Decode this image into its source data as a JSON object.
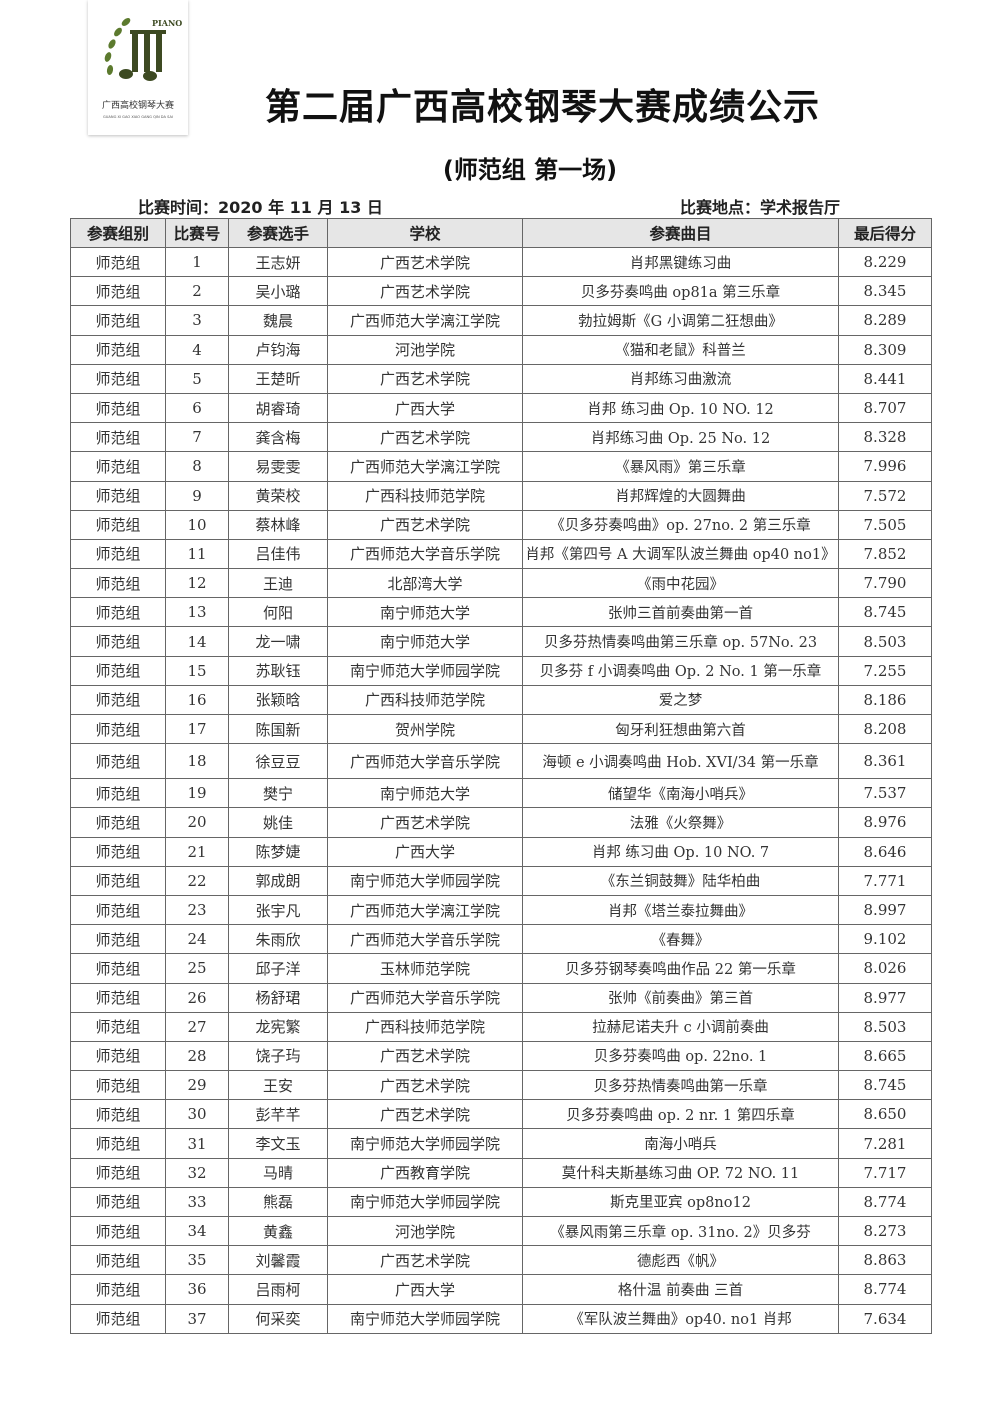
{
  "logo": {
    "top_text": "PIANO",
    "cn_text": "广西高校钢琴大赛",
    "pinyin": "GUANG XI GAO XIAO GANG QIN DA SAI",
    "color": "#4a5a2a"
  },
  "title": "第二届广西高校钢琴大赛成绩公示",
  "subtitle": "(师范组  第一场)",
  "time_label": "比赛时间：2020 年 11 月 13 日",
  "venue_label": "比赛地点：学术报告厅",
  "table": {
    "headers": [
      "参赛组别",
      "比赛号",
      "参赛选手",
      "学校",
      "参赛曲目",
      "最后得分"
    ],
    "rows": [
      [
        "师范组",
        "1",
        "王志妍",
        "广西艺术学院",
        "肖邦黑键练习曲",
        "8.229"
      ],
      [
        "师范组",
        "2",
        "吴小璐",
        "广西艺术学院",
        "贝多芬奏鸣曲 op81a 第三乐章",
        "8.345"
      ],
      [
        "师范组",
        "3",
        "魏晨",
        "广西师范大学漓江学院",
        "勃拉姆斯《G 小调第二狂想曲》",
        "8.289"
      ],
      [
        "师范组",
        "4",
        "卢钧海",
        "河池学院",
        "《猫和老鼠》科普兰",
        "8.309"
      ],
      [
        "师范组",
        "5",
        "王楚昕",
        "广西艺术学院",
        "肖邦练习曲激流",
        "8.441"
      ],
      [
        "师范组",
        "6",
        "胡睿琦",
        "广西大学",
        "肖邦  练习曲  Op. 10  NO. 12",
        "8.707"
      ],
      [
        "师范组",
        "7",
        "龚含梅",
        "广西艺术学院",
        "肖邦练习曲 Op. 25  No. 12",
        "8.328"
      ],
      [
        "师范组",
        "8",
        "易雯雯",
        "广西师范大学漓江学院",
        "《暴风雨》第三乐章",
        "7.996"
      ],
      [
        "师范组",
        "9",
        "黄荣校",
        "广西科技师范学院",
        "肖邦辉煌的大圆舞曲",
        "7.572"
      ],
      [
        "师范组",
        "10",
        "蔡林峰",
        "广西艺术学院",
        "《贝多芬奏鸣曲》op. 27no. 2 第三乐章",
        "7.505"
      ],
      [
        "师范组",
        "11",
        "吕佳伟",
        "广西师范大学音乐学院",
        "肖邦《第四号 A 大调军队波兰舞曲 op40 no1》",
        "7.852"
      ],
      [
        "师范组",
        "12",
        "王迪",
        "北部湾大学",
        "《雨中花园》",
        "7.790"
      ],
      [
        "师范组",
        "13",
        "何阳",
        "南宁师范大学",
        "张帅三首前奏曲第一首",
        "8.745"
      ],
      [
        "师范组",
        "14",
        "龙一啸",
        "南宁师范大学",
        "贝多芬热情奏鸣曲第三乐章 op. 57No. 23",
        "8.503"
      ],
      [
        "师范组",
        "15",
        "苏耿钰",
        "南宁师范大学师园学院",
        "贝多芬 f 小调奏鸣曲 Op. 2  No. 1 第一乐章",
        "7.255"
      ],
      [
        "师范组",
        "16",
        "张颖晗",
        "广西科技师范学院",
        "爱之梦",
        "8.186"
      ],
      [
        "师范组",
        "17",
        "陈国新",
        "贺州学院",
        "匈牙利狂想曲第六首",
        "8.208"
      ],
      [
        "师范组",
        "18",
        "徐豆豆",
        "广西师范大学音乐学院",
        "海顿 e 小调奏鸣曲 Hob. XVI/34 第一乐章",
        "8.361"
      ],
      [
        "师范组",
        "19",
        "樊宁",
        "南宁师范大学",
        "储望华《南海小哨兵》",
        "7.537"
      ],
      [
        "师范组",
        "20",
        "姚佳",
        "广西艺术学院",
        "法雅《火祭舞》",
        "8.976"
      ],
      [
        "师范组",
        "21",
        "陈梦婕",
        "广西大学",
        "肖邦  练习曲  Op. 10  NO. 7",
        "8.646"
      ],
      [
        "师范组",
        "22",
        "郭成朗",
        "南宁师范大学师园学院",
        "《东兰铜鼓舞》陆华柏曲",
        "7.771"
      ],
      [
        "师范组",
        "23",
        "张宇凡",
        "广西师范大学漓江学院",
        "肖邦《塔兰泰拉舞曲》",
        "8.997"
      ],
      [
        "师范组",
        "24",
        "朱雨欣",
        "广西师范大学音乐学院",
        "《春舞》",
        "9.102"
      ],
      [
        "师范组",
        "25",
        "邱子洋",
        "玉林师范学院",
        "贝多芬钢琴奏鸣曲作品 22 第一乐章",
        "8.026"
      ],
      [
        "师范组",
        "26",
        "杨舒珺",
        "广西师范大学音乐学院",
        "张帅《前奏曲》第三首",
        "8.977"
      ],
      [
        "师范组",
        "27",
        "龙宪繁",
        "广西科技师范学院",
        "拉赫尼诺夫升 c 小调前奏曲",
        "8.503"
      ],
      [
        "师范组",
        "28",
        "饶子玙",
        "广西艺术学院",
        "贝多芬奏鸣曲 op. 22no. 1",
        "8.665"
      ],
      [
        "师范组",
        "29",
        "王安",
        "广西艺术学院",
        "贝多芬热情奏鸣曲第一乐章",
        "8.745"
      ],
      [
        "师范组",
        "30",
        "彭芊芊",
        "广西艺术学院",
        "贝多芬奏鸣曲 op. 2  nr. 1 第四乐章",
        "8.650"
      ],
      [
        "师范组",
        "31",
        "李文玉",
        "南宁师范大学师园学院",
        "南海小哨兵",
        "7.281"
      ],
      [
        "师范组",
        "32",
        "马晴",
        "广西教育学院",
        "莫什科夫斯基练习曲 OP. 72  NO. 11",
        "7.717"
      ],
      [
        "师范组",
        "33",
        "熊磊",
        "南宁师范大学师园学院",
        "斯克里亚宾 op8no12",
        "8.774"
      ],
      [
        "师范组",
        "34",
        "黄鑫",
        "河池学院",
        "《暴风雨第三乐章 op. 31no. 2》贝多芬",
        "8.273"
      ],
      [
        "师范组",
        "35",
        "刘馨霞",
        "广西艺术学院",
        "德彪西《帆》",
        "8.863"
      ],
      [
        "师范组",
        "36",
        "吕雨柯",
        "广西大学",
        "格什温  前奏曲  三首",
        "8.774"
      ],
      [
        "师范组",
        "37",
        "何采奕",
        "南宁师范大学师园学院",
        "《军队波兰舞曲》op40. no1 肖邦",
        "7.634"
      ]
    ]
  }
}
